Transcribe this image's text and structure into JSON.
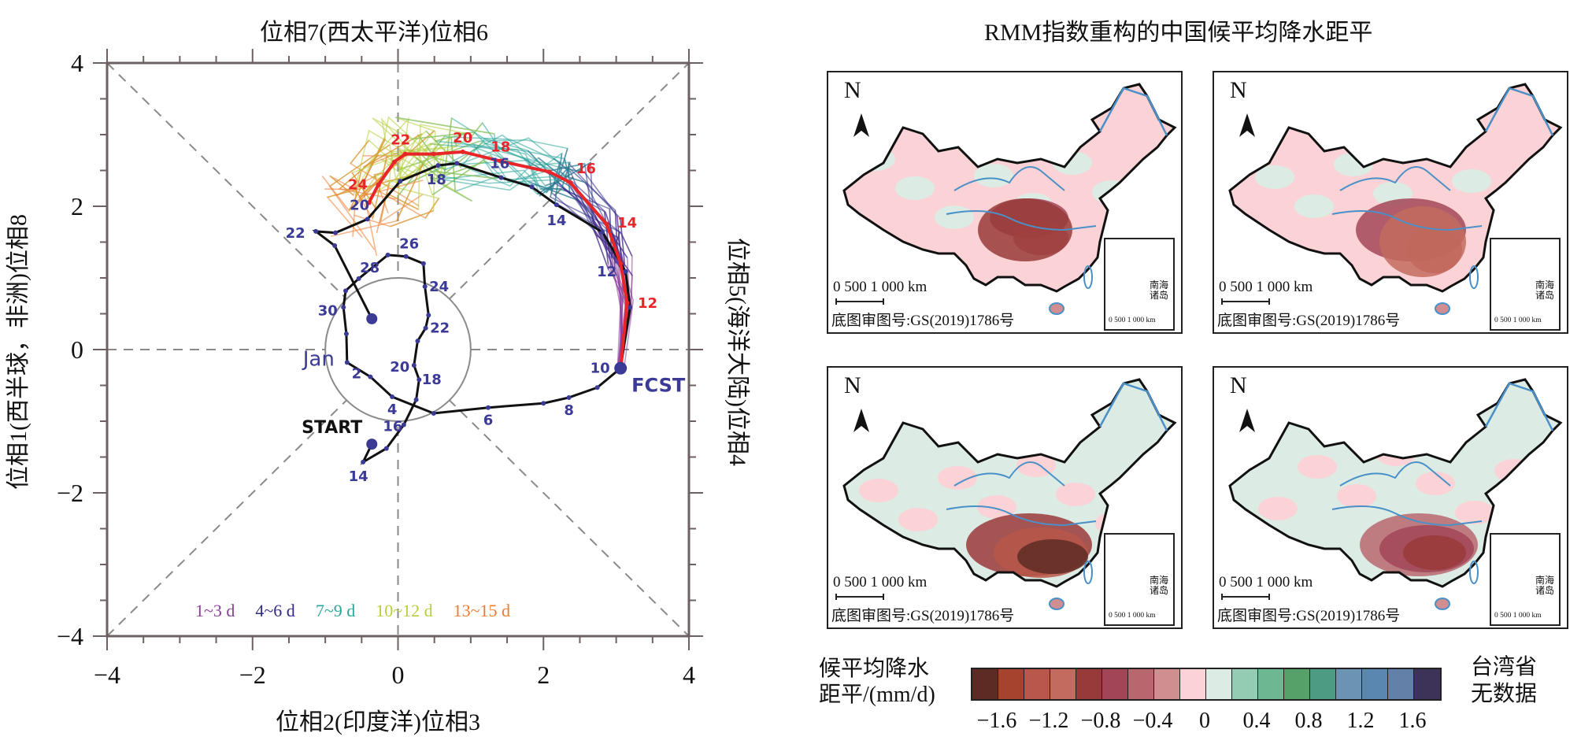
{
  "chart_data": [
    {
      "type": "line",
      "title": "位相7(西太平洋)位相6",
      "xlabel": "位相2(印度洋)位相3",
      "ylabel_left": "位相1(西半球，非洲)位相8",
      "ylabel_right": "位相5(海洋大陆)位相4",
      "xlim": [
        -4,
        4
      ],
      "ylim": [
        -4,
        4
      ],
      "xticks": [
        "−4",
        "−2",
        "0",
        "2",
        "4"
      ],
      "yticks": [
        "−4",
        "−2",
        "0",
        "2",
        "4"
      ],
      "grid": "dashed phase dividers and unit circle",
      "unit_circle_radius": 1,
      "annotations": {
        "start": "START",
        "fcst": "FCST",
        "month": "Jan"
      },
      "legend": [
        {
          "label": "1~3 d",
          "color": "#8b3d9a"
        },
        {
          "label": "4~6 d",
          "color": "#2e2a86"
        },
        {
          "label": "7~9 d",
          "color": "#2aa59a"
        },
        {
          "label": "10~12 d",
          "color": "#b5cf3c"
        },
        {
          "label": "13~15 d",
          "color": "#ee7a2e"
        }
      ],
      "legend_position": "bottom-center",
      "series": [
        {
          "name": "observed",
          "color": "#111111",
          "points": [
            {
              "x": -0.36,
              "y": -1.32,
              "label": ""
            },
            {
              "x": -0.48,
              "y": -1.57,
              "label": "14"
            },
            {
              "x": -0.16,
              "y": -1.38,
              "label": ""
            },
            {
              "x": 0.08,
              "y": -1.05,
              "label": "16"
            },
            {
              "x": 0.25,
              "y": -0.7,
              "label": ""
            },
            {
              "x": 0.29,
              "y": -0.42,
              "label": "18"
            },
            {
              "x": 0.22,
              "y": -0.22,
              "label": "20"
            },
            {
              "x": 0.27,
              "y": 0.12,
              "label": ""
            },
            {
              "x": 0.38,
              "y": 0.3,
              "label": "22"
            },
            {
              "x": 0.42,
              "y": 0.48,
              "label": ""
            },
            {
              "x": 0.37,
              "y": 0.88,
              "label": "24"
            },
            {
              "x": 0.35,
              "y": 1.2,
              "label": ""
            },
            {
              "x": 0.11,
              "y": 1.3,
              "label": "26"
            },
            {
              "x": -0.14,
              "y": 1.32,
              "label": ""
            },
            {
              "x": -0.54,
              "y": 0.99,
              "label": "28"
            },
            {
              "x": -0.72,
              "y": 0.82,
              "label": ""
            },
            {
              "x": -0.75,
              "y": 0.59,
              "label": "30"
            },
            {
              "x": -0.71,
              "y": 0.22,
              "label": ""
            },
            {
              "x": -0.7,
              "y": -0.18,
              "label": "2"
            },
            {
              "x": -0.38,
              "y": -0.38,
              "label": ""
            },
            {
              "x": -0.08,
              "y": -0.66,
              "label": "4"
            },
            {
              "x": 0.49,
              "y": -0.89,
              "label": ""
            },
            {
              "x": 1.24,
              "y": -0.81,
              "label": "6"
            },
            {
              "x": 2.0,
              "y": -0.75,
              "label": ""
            },
            {
              "x": 2.35,
              "y": -0.67,
              "label": "8"
            },
            {
              "x": 2.74,
              "y": -0.53,
              "label": ""
            },
            {
              "x": 3.06,
              "y": -0.26,
              "label": "10"
            },
            {
              "x": 3.19,
              "y": 0.59,
              "label": ""
            },
            {
              "x": 3.13,
              "y": 1.09,
              "label": "12"
            },
            {
              "x": 2.81,
              "y": 1.64,
              "label": ""
            },
            {
              "x": 2.18,
              "y": 2.02,
              "label": "14"
            },
            {
              "x": 1.84,
              "y": 2.27,
              "label": ""
            },
            {
              "x": 1.42,
              "y": 2.4,
              "label": "16"
            },
            {
              "x": 0.81,
              "y": 2.6,
              "label": ""
            },
            {
              "x": 0.55,
              "y": 2.57,
              "label": "18"
            },
            {
              "x": 0.03,
              "y": 2.35,
              "label": ""
            },
            {
              "x": -0.42,
              "y": 1.82,
              "label": "20"
            },
            {
              "x": -0.86,
              "y": 1.63,
              "label": ""
            },
            {
              "x": -1.13,
              "y": 1.65,
              "label": "22"
            },
            {
              "x": -0.87,
              "y": 1.45,
              "label": ""
            },
            {
              "x": -0.36,
              "y": 0.43,
              "label": ""
            }
          ]
        },
        {
          "name": "ensemble-mean forecast",
          "color": "#e8262a",
          "points": [
            {
              "x": 3.06,
              "y": -0.26,
              "label": ""
            },
            {
              "x": 3.15,
              "y": 0.65,
              "label": "12"
            },
            {
              "x": 3.06,
              "y": 1.2,
              "label": ""
            },
            {
              "x": 2.87,
              "y": 1.75,
              "label": "14"
            },
            {
              "x": 2.37,
              "y": 2.33,
              "label": "16"
            },
            {
              "x": 2.08,
              "y": 2.48,
              "label": ""
            },
            {
              "x": 1.41,
              "y": 2.63,
              "label": "18"
            },
            {
              "x": 0.89,
              "y": 2.76,
              "label": "20"
            },
            {
              "x": 0.49,
              "y": 2.73,
              "label": ""
            },
            {
              "x": 0.1,
              "y": 2.73,
              "label": "22"
            },
            {
              "x": -0.05,
              "y": 2.62,
              "label": ""
            },
            {
              "x": -0.27,
              "y": 2.3,
              "label": "24"
            },
            {
              "x": -0.4,
              "y": 2.05,
              "label": ""
            }
          ]
        }
      ]
    },
    {
      "type": "heatmap",
      "title": "RMM指数重构的中国候平均降水距平",
      "panels": [
        {
          "id": "a",
          "pattern": "negative anomaly centered over Yangtze basin",
          "scale_label": "0  500 1 000 km",
          "credit": "底图审图号:GS(2019)1786号"
        },
        {
          "id": "b",
          "pattern": "negative anomaly over southeast China",
          "scale_label": "0  500 1 000 km",
          "credit": "底图审图号:GS(2019)1786号"
        },
        {
          "id": "c",
          "pattern": "strong negative anomaly over South China",
          "scale_label": "0  500 1 000 km",
          "credit": "底图审图号:GS(2019)1786号"
        },
        {
          "id": "d",
          "pattern": "moderate negative anomaly over South China",
          "scale_label": "0  500 1 000 km",
          "credit": "底图审图号:GS(2019)1786号"
        }
      ],
      "north_label": "N",
      "inset_label_line1": "南海",
      "inset_label_line2": "诸岛",
      "inset_scale": "0  500 1 000 km",
      "colorbar": {
        "title_line1": "候平均降水",
        "title_line2": "距平/(mm/d)",
        "note_line1": "台湾省",
        "note_line2": "无数据",
        "ticks": [
          "−1.6",
          "−1.2",
          "−0.8",
          "−0.4",
          "0",
          "0.4",
          "0.8",
          "1.2",
          "1.6"
        ],
        "colors": [
          "#5e2b24",
          "#a5432f",
          "#b9574a",
          "#c36b5f",
          "#993a3a",
          "#a24657",
          "#b8676e",
          "#d08e91",
          "#fbd3d6",
          "#dcebe4",
          "#94cbb3",
          "#6db893",
          "#56a06a",
          "#4e9b84",
          "#6b94b3",
          "#5a87b0",
          "#6380a8",
          "#3d3257"
        ]
      }
    }
  ]
}
